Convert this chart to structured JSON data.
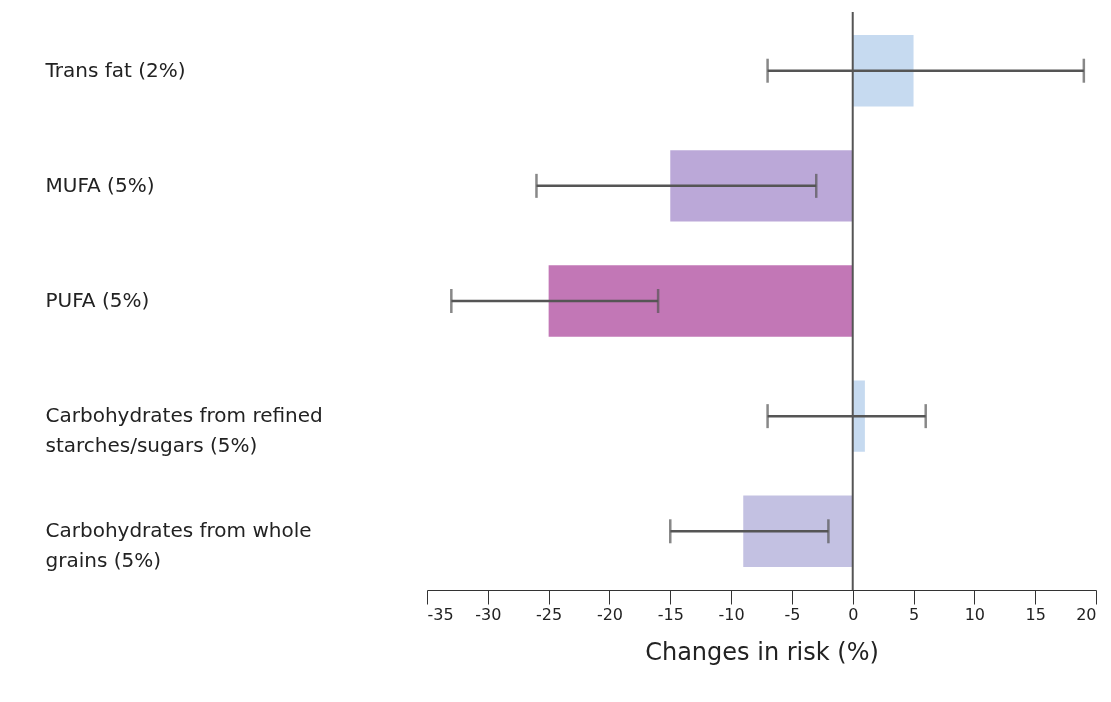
{
  "chart_data": {
    "type": "bar",
    "orientation": "horizontal",
    "xlabel": "Changes in risk (%)",
    "categories": [
      "Trans fat (2%)",
      "MUFA (5%)",
      "PUFA (5%)",
      "Carbohydrates from refined starches/sugars (5%)",
      "Carbohydrates from whole grains (5%)"
    ],
    "values": [
      5,
      -15,
      -25,
      1,
      -9
    ],
    "colors": [
      "#c6daf0",
      "#bba8d8",
      "#c277b6",
      "#c6daf0",
      "#c3c1e2"
    ],
    "errors": [
      [
        -7,
        19
      ],
      [
        -26,
        -3
      ],
      [
        -33,
        -16
      ],
      [
        -7,
        6
      ],
      [
        -15,
        -2
      ]
    ],
    "xlim": [
      -35,
      20
    ],
    "xticks": [
      -35,
      -30,
      -25,
      -20,
      -15,
      -10,
      -5,
      0,
      5,
      10,
      15,
      20
    ],
    "ref_lines": [
      {
        "axis": "x",
        "value": 0,
        "color": "#555555"
      }
    ],
    "grid": false
  }
}
